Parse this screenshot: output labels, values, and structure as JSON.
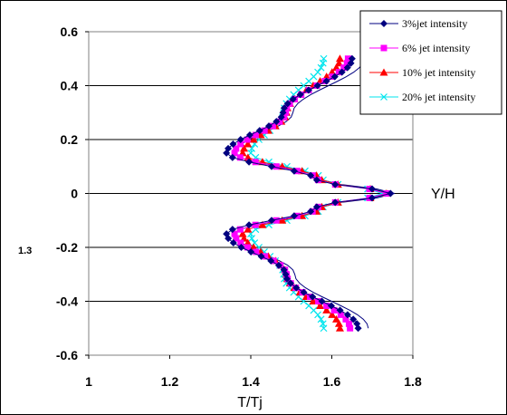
{
  "chart_data": {
    "type": "line",
    "xlabel": "T/Tj",
    "ylabel": "Y/H",
    "xlim": [
      1,
      1.8
    ],
    "ylim": [
      -0.6,
      0.6
    ],
    "x_ticks": [
      "1",
      "1.2",
      "1.4",
      "1.6",
      "1.8"
    ],
    "y_ticks": [
      "-0.6",
      "-0.4",
      "-0.2",
      "0",
      "0.2",
      "0.4",
      "0.6"
    ],
    "stray_label": "1.3",
    "grid": "horizontal",
    "legend_position": "top-right",
    "series": [
      {
        "name": "3%jet intensity",
        "color": "#000080",
        "marker": "diamond",
        "left": 1.34,
        "center": 1.745,
        "top": 1.65,
        "bottom": 1.665
      },
      {
        "name": "6% jet intensity",
        "color": "#ff00ff",
        "marker": "square",
        "left": 1.36,
        "center": 1.735,
        "top": 1.64,
        "bottom": 1.645
      },
      {
        "name": "10% jet intensity",
        "color": "#ff0000",
        "marker": "triangle",
        "left": 1.38,
        "center": 1.735,
        "top": 1.62,
        "bottom": 1.62
      },
      {
        "name": "20% jet intensity",
        "color": "#00e5ee",
        "marker": "x",
        "left": 1.4,
        "center": 1.725,
        "top": 1.58,
        "bottom": 1.58
      }
    ],
    "reference_line": {
      "color": "#000080",
      "left": 1.36,
      "center": 1.755,
      "top": 1.68,
      "bottom": 1.69
    }
  }
}
